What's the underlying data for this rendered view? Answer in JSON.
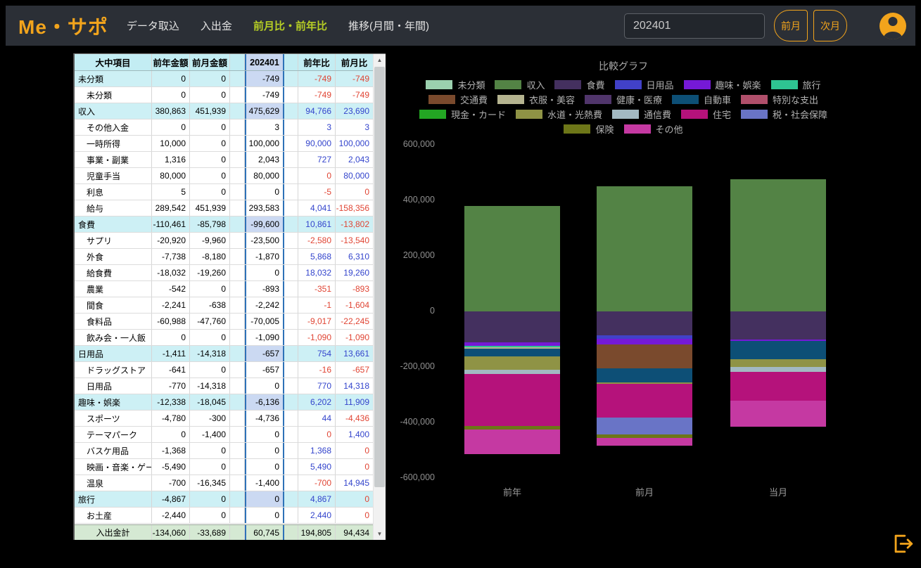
{
  "navbar": {
    "logo": "Me・サポ",
    "items": [
      {
        "label": "データ取込",
        "active": false
      },
      {
        "label": "入出金",
        "active": false
      },
      {
        "label": "前月比・前年比",
        "active": true
      },
      {
        "label": "推移(月間・年間)",
        "active": false
      }
    ],
    "month_value": "202401",
    "prev_label": "前月",
    "next_label": "次月"
  },
  "icons": {
    "avatar": "person-circle",
    "logout": "logout-door-arrow",
    "scroll_up": "▲",
    "scroll_down": "▼"
  },
  "colors": {
    "accent_orange": "#f2a41c",
    "nav_active": "#b6ce25",
    "diff_positive": "#3344cc",
    "diff_negative": "#e04433",
    "current_col_border": "#2e72b8",
    "header_bg": "#c3edf3",
    "category_bg": "#cdf0f5",
    "footer_bg": "#d5e9d3"
  },
  "table": {
    "headers": [
      "大中項目",
      "前年金額",
      "前月金額",
      "202401",
      "前年比",
      "前月比"
    ],
    "rows": [
      {
        "label": "未分類",
        "type": "cat",
        "values": [
          "0",
          "0",
          "-749",
          "-749",
          "-749"
        ]
      },
      {
        "label": "未分類",
        "type": "sub",
        "values": [
          "0",
          "0",
          "-749",
          "-749",
          "-749"
        ]
      },
      {
        "label": "収入",
        "type": "cat",
        "values": [
          "380,863",
          "451,939",
          "475,629",
          "94,766",
          "23,690"
        ]
      },
      {
        "label": "その他入金",
        "type": "sub",
        "values": [
          "0",
          "0",
          "3",
          "3",
          "3"
        ]
      },
      {
        "label": "一時所得",
        "type": "sub",
        "values": [
          "10,000",
          "0",
          "100,000",
          "90,000",
          "100,000"
        ]
      },
      {
        "label": "事業・副業",
        "type": "sub",
        "values": [
          "1,316",
          "0",
          "2,043",
          "727",
          "2,043"
        ]
      },
      {
        "label": "児童手当",
        "type": "sub",
        "values": [
          "80,000",
          "0",
          "80,000",
          "0",
          "80,000"
        ]
      },
      {
        "label": "利息",
        "type": "sub",
        "values": [
          "5",
          "0",
          "0",
          "-5",
          "0"
        ]
      },
      {
        "label": "給与",
        "type": "sub",
        "values": [
          "289,542",
          "451,939",
          "293,583",
          "4,041",
          "-158,356"
        ]
      },
      {
        "label": "食費",
        "type": "cat",
        "values": [
          "-110,461",
          "-85,798",
          "-99,600",
          "10,861",
          "-13,802"
        ]
      },
      {
        "label": "サプリ",
        "type": "sub",
        "values": [
          "-20,920",
          "-9,960",
          "-23,500",
          "-2,580",
          "-13,540"
        ]
      },
      {
        "label": "外食",
        "type": "sub",
        "values": [
          "-7,738",
          "-8,180",
          "-1,870",
          "5,868",
          "6,310"
        ]
      },
      {
        "label": "給食費",
        "type": "sub",
        "values": [
          "-18,032",
          "-19,260",
          "0",
          "18,032",
          "19,260"
        ]
      },
      {
        "label": "農業",
        "type": "sub",
        "values": [
          "-542",
          "0",
          "-893",
          "-351",
          "-893"
        ]
      },
      {
        "label": "間食",
        "type": "sub",
        "values": [
          "-2,241",
          "-638",
          "-2,242",
          "-1",
          "-1,604"
        ]
      },
      {
        "label": "食料品",
        "type": "sub",
        "values": [
          "-60,988",
          "-47,760",
          "-70,005",
          "-9,017",
          "-22,245"
        ]
      },
      {
        "label": "飲み会・一人飯",
        "type": "sub",
        "values": [
          "0",
          "0",
          "-1,090",
          "-1,090",
          "-1,090"
        ]
      },
      {
        "label": "日用品",
        "type": "cat",
        "values": [
          "-1,411",
          "-14,318",
          "-657",
          "754",
          "13,661"
        ]
      },
      {
        "label": "ドラッグストア",
        "type": "sub",
        "values": [
          "-641",
          "0",
          "-657",
          "-16",
          "-657"
        ]
      },
      {
        "label": "日用品",
        "type": "sub",
        "values": [
          "-770",
          "-14,318",
          "0",
          "770",
          "14,318"
        ]
      },
      {
        "label": "趣味・娯楽",
        "type": "cat",
        "values": [
          "-12,338",
          "-18,045",
          "-6,136",
          "6,202",
          "11,909"
        ]
      },
      {
        "label": "スポーツ",
        "type": "sub",
        "values": [
          "-4,780",
          "-300",
          "-4,736",
          "44",
          "-4,436"
        ]
      },
      {
        "label": "テーマパーク",
        "type": "sub",
        "values": [
          "0",
          "-1,400",
          "0",
          "0",
          "1,400"
        ]
      },
      {
        "label": "バスケ用品",
        "type": "sub",
        "values": [
          "-1,368",
          "0",
          "0",
          "1,368",
          "0"
        ]
      },
      {
        "label": "映画・音楽・ゲーム",
        "type": "sub",
        "values": [
          "-5,490",
          "0",
          "0",
          "5,490",
          "0"
        ]
      },
      {
        "label": "温泉",
        "type": "sub",
        "values": [
          "-700",
          "-16,345",
          "-1,400",
          "-700",
          "14,945"
        ]
      },
      {
        "label": "旅行",
        "type": "cat",
        "values": [
          "-4,867",
          "0",
          "0",
          "4,867",
          "0"
        ]
      },
      {
        "label": "お土産",
        "type": "sub",
        "values": [
          "-2,440",
          "0",
          "0",
          "2,440",
          "0"
        ]
      }
    ],
    "footer": {
      "label": "入出金計",
      "values": [
        "-134,060",
        "-33,689",
        "60,745",
        "194,805",
        "94,434"
      ]
    }
  },
  "chart_data": {
    "type": "bar",
    "subtype": "stacked",
    "title": "比較グラフ",
    "x_labels": [
      "前年",
      "前月",
      "当月"
    ],
    "y_ticks": [
      "600,000",
      "400,000",
      "200,000",
      "0",
      "-200,000",
      "-400,000",
      "-600,000"
    ],
    "ylim": [
      -600000,
      600000
    ],
    "legend_rows": [
      6,
      5,
      5,
      2
    ],
    "categories": [
      {
        "label": "未分類",
        "color": "#9bd0ae"
      },
      {
        "label": "収入",
        "color": "#538345"
      },
      {
        "label": "食費",
        "color": "#44305f"
      },
      {
        "label": "日用品",
        "color": "#4141c8"
      },
      {
        "label": "趣味・娯楽",
        "color": "#7519d6"
      },
      {
        "label": "旅行",
        "color": "#2ec492"
      },
      {
        "label": "交通費",
        "color": "#7a4a2d"
      },
      {
        "label": "衣服・美容",
        "color": "#b5b490"
      },
      {
        "label": "健康・医療",
        "color": "#50356b"
      },
      {
        "label": "自動車",
        "color": "#0d4f76"
      },
      {
        "label": "特別な支出",
        "color": "#b04f6b"
      },
      {
        "label": "現金・カード",
        "color": "#23a623"
      },
      {
        "label": "水道・光熱費",
        "color": "#8f9345"
      },
      {
        "label": "通信費",
        "color": "#a2b9c2"
      },
      {
        "label": "住宅",
        "color": "#b5127b"
      },
      {
        "label": "税・社会保障",
        "color": "#6974c6"
      },
      {
        "label": "保険",
        "color": "#6d7618"
      },
      {
        "label": "その他",
        "color": "#c539a2"
      }
    ],
    "bars": [
      {
        "label": "前年",
        "segments": {
          "収入": 380863,
          "食費": -110461,
          "日用品": -1411,
          "趣味・娯楽": -12338,
          "旅行": -4867,
          "衣服・美容": -6000,
          "自動車": -26000,
          "水道・光熱費": -50000,
          "通信費": -15000,
          "住宅": -187000,
          "保険": -13000,
          "その他": -88000
        }
      },
      {
        "label": "前月",
        "segments": {
          "収入": 451939,
          "食費": -85798,
          "日用品": -14318,
          "趣味・娯楽": -18045,
          "交通費": -86000,
          "自動車": -52000,
          "水道・光熱費": -6000,
          "住宅": -120000,
          "税・社会保障": -62000,
          "保険": -12000,
          "その他": -29000
        }
      },
      {
        "label": "当月",
        "segments": {
          "未分類": -749,
          "収入": 475629,
          "食費": -99600,
          "日用品": -657,
          "趣味・娯楽": -6136,
          "特別な支出": -2000,
          "自動車": -64000,
          "水道・光熱費": -27000,
          "通信費": -17000,
          "住宅": -105000,
          "その他": -93000
        }
      }
    ]
  }
}
